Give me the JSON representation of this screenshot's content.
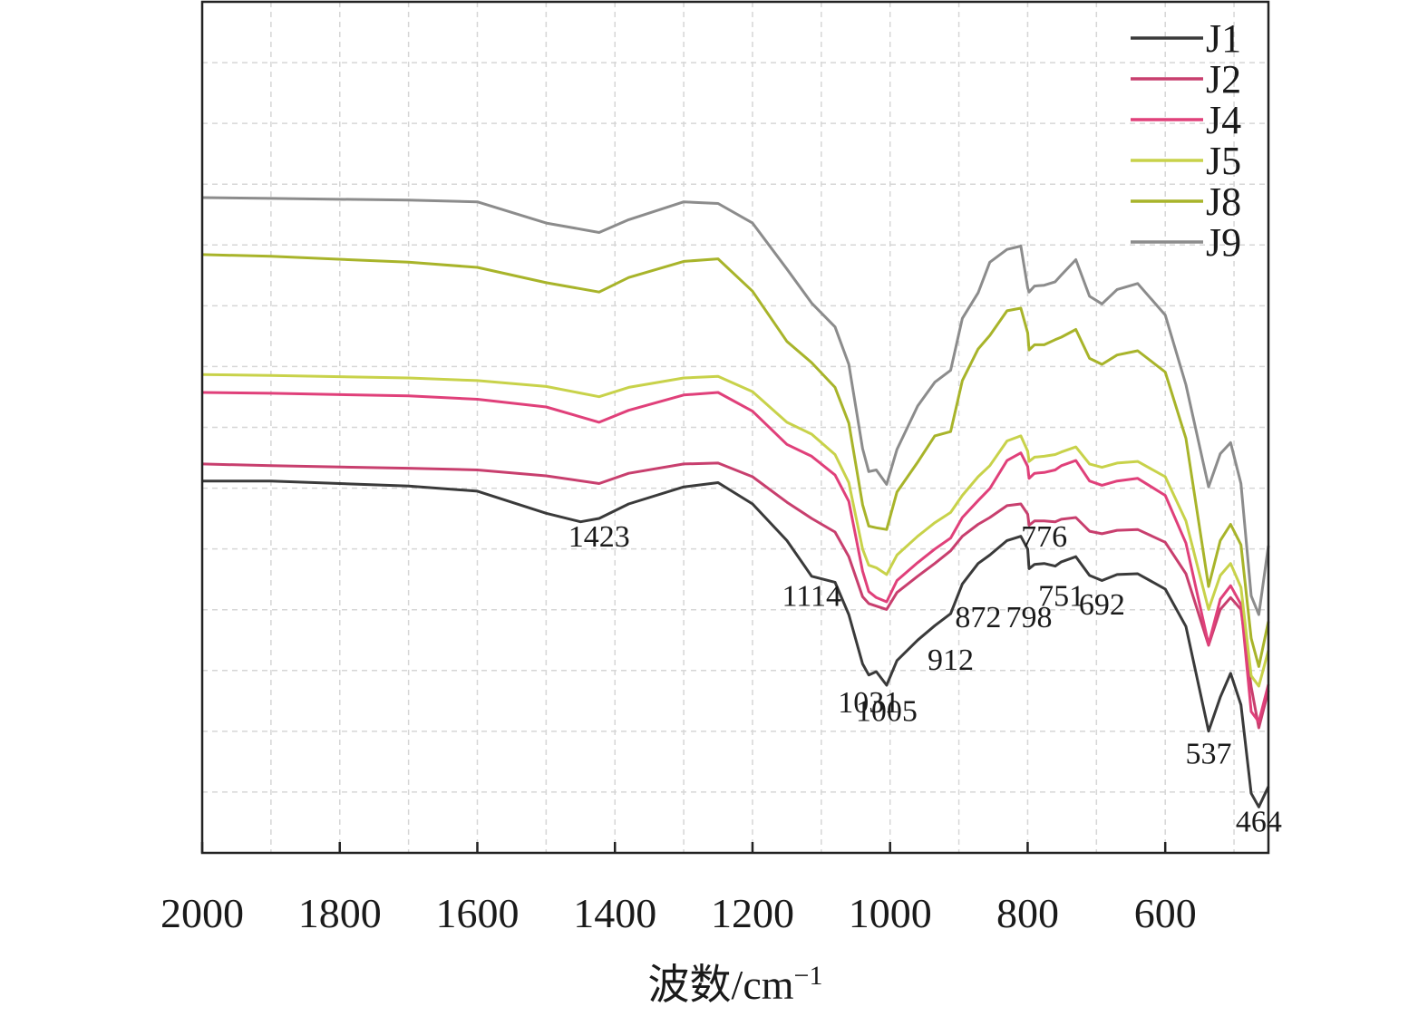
{
  "chart_data": {
    "type": "line",
    "xlabel": "波数/cm",
    "xlabel_sup": "−1",
    "ylabel": "",
    "xlim": [
      2000,
      450
    ],
    "ylim": [
      0,
      1
    ],
    "x_reversed": true,
    "x_ticks": [
      2000,
      1800,
      1600,
      1400,
      1200,
      1000,
      800,
      600
    ],
    "x_tick_labels": [
      "2000",
      "1800",
      "1600",
      "1400",
      "1200",
      "1000",
      "800",
      "600"
    ],
    "grid": true,
    "legend_position": "top-right",
    "series": [
      {
        "name": "J1",
        "color": "#3a3a3a",
        "points": [
          [
            2000,
            0.437
          ],
          [
            1900,
            0.437
          ],
          [
            1700,
            0.431
          ],
          [
            1600,
            0.425
          ],
          [
            1500,
            0.399
          ],
          [
            1450,
            0.389
          ],
          [
            1423,
            0.393
          ],
          [
            1380,
            0.41
          ],
          [
            1300,
            0.43
          ],
          [
            1250,
            0.435
          ],
          [
            1200,
            0.41
          ],
          [
            1150,
            0.367
          ],
          [
            1114,
            0.325
          ],
          [
            1080,
            0.318
          ],
          [
            1060,
            0.28
          ],
          [
            1040,
            0.222
          ],
          [
            1031,
            0.209
          ],
          [
            1020,
            0.213
          ],
          [
            1005,
            0.197
          ],
          [
            990,
            0.226
          ],
          [
            960,
            0.25
          ],
          [
            935,
            0.267
          ],
          [
            912,
            0.281
          ],
          [
            895,
            0.316
          ],
          [
            872,
            0.34
          ],
          [
            855,
            0.35
          ],
          [
            830,
            0.367
          ],
          [
            810,
            0.372
          ],
          [
            800,
            0.357
          ],
          [
            798,
            0.334
          ],
          [
            790,
            0.339
          ],
          [
            776,
            0.34
          ],
          [
            760,
            0.337
          ],
          [
            751,
            0.342
          ],
          [
            730,
            0.348
          ],
          [
            710,
            0.326
          ],
          [
            692,
            0.32
          ],
          [
            670,
            0.327
          ],
          [
            640,
            0.328
          ],
          [
            600,
            0.31
          ],
          [
            570,
            0.266
          ],
          [
            537,
            0.143
          ],
          [
            520,
            0.183
          ],
          [
            505,
            0.211
          ],
          [
            490,
            0.174
          ],
          [
            475,
            0.07
          ],
          [
            464,
            0.054
          ],
          [
            450,
            0.078
          ]
        ]
      },
      {
        "name": "J2",
        "color": "#c83f6e",
        "points": [
          [
            2000,
            0.457
          ],
          [
            1900,
            0.455
          ],
          [
            1700,
            0.452
          ],
          [
            1600,
            0.45
          ],
          [
            1500,
            0.443
          ],
          [
            1423,
            0.434
          ],
          [
            1380,
            0.446
          ],
          [
            1300,
            0.457
          ],
          [
            1250,
            0.458
          ],
          [
            1200,
            0.442
          ],
          [
            1150,
            0.412
          ],
          [
            1114,
            0.393
          ],
          [
            1080,
            0.377
          ],
          [
            1060,
            0.348
          ],
          [
            1040,
            0.301
          ],
          [
            1031,
            0.293
          ],
          [
            1020,
            0.29
          ],
          [
            1005,
            0.286
          ],
          [
            990,
            0.306
          ],
          [
            960,
            0.325
          ],
          [
            935,
            0.34
          ],
          [
            912,
            0.355
          ],
          [
            895,
            0.372
          ],
          [
            872,
            0.386
          ],
          [
            855,
            0.394
          ],
          [
            830,
            0.408
          ],
          [
            810,
            0.41
          ],
          [
            800,
            0.398
          ],
          [
            798,
            0.385
          ],
          [
            790,
            0.39
          ],
          [
            776,
            0.39
          ],
          [
            760,
            0.389
          ],
          [
            751,
            0.392
          ],
          [
            730,
            0.394
          ],
          [
            710,
            0.378
          ],
          [
            692,
            0.375
          ],
          [
            670,
            0.379
          ],
          [
            640,
            0.38
          ],
          [
            600,
            0.365
          ],
          [
            570,
            0.328
          ],
          [
            537,
            0.244
          ],
          [
            520,
            0.286
          ],
          [
            505,
            0.3
          ],
          [
            490,
            0.286
          ],
          [
            475,
            0.195
          ],
          [
            464,
            0.147
          ],
          [
            450,
            0.191
          ]
        ]
      },
      {
        "name": "J4",
        "color": "#e0407a",
        "points": [
          [
            2000,
            0.541
          ],
          [
            1900,
            0.54
          ],
          [
            1700,
            0.537
          ],
          [
            1600,
            0.533
          ],
          [
            1500,
            0.524
          ],
          [
            1423,
            0.506
          ],
          [
            1380,
            0.52
          ],
          [
            1300,
            0.538
          ],
          [
            1250,
            0.541
          ],
          [
            1200,
            0.519
          ],
          [
            1150,
            0.48
          ],
          [
            1114,
            0.466
          ],
          [
            1080,
            0.444
          ],
          [
            1060,
            0.413
          ],
          [
            1040,
            0.331
          ],
          [
            1031,
            0.307
          ],
          [
            1020,
            0.3
          ],
          [
            1005,
            0.295
          ],
          [
            990,
            0.32
          ],
          [
            960,
            0.341
          ],
          [
            935,
            0.357
          ],
          [
            912,
            0.37
          ],
          [
            895,
            0.394
          ],
          [
            872,
            0.414
          ],
          [
            855,
            0.428
          ],
          [
            830,
            0.461
          ],
          [
            810,
            0.47
          ],
          [
            800,
            0.454
          ],
          [
            798,
            0.44
          ],
          [
            790,
            0.446
          ],
          [
            776,
            0.447
          ],
          [
            760,
            0.45
          ],
          [
            751,
            0.455
          ],
          [
            730,
            0.461
          ],
          [
            710,
            0.437
          ],
          [
            692,
            0.432
          ],
          [
            670,
            0.437
          ],
          [
            640,
            0.44
          ],
          [
            600,
            0.42
          ],
          [
            570,
            0.364
          ],
          [
            537,
            0.245
          ],
          [
            520,
            0.298
          ],
          [
            505,
            0.314
          ],
          [
            490,
            0.292
          ],
          [
            475,
            0.166
          ],
          [
            464,
            0.154
          ],
          [
            450,
            0.198
          ]
        ]
      },
      {
        "name": "J5",
        "color": "#c8d24a",
        "points": [
          [
            2000,
            0.562
          ],
          [
            1900,
            0.561
          ],
          [
            1700,
            0.558
          ],
          [
            1600,
            0.555
          ],
          [
            1500,
            0.548
          ],
          [
            1423,
            0.536
          ],
          [
            1380,
            0.547
          ],
          [
            1300,
            0.558
          ],
          [
            1250,
            0.56
          ],
          [
            1200,
            0.542
          ],
          [
            1150,
            0.506
          ],
          [
            1114,
            0.492
          ],
          [
            1080,
            0.468
          ],
          [
            1060,
            0.435
          ],
          [
            1040,
            0.357
          ],
          [
            1031,
            0.338
          ],
          [
            1020,
            0.335
          ],
          [
            1005,
            0.327
          ],
          [
            990,
            0.35
          ],
          [
            960,
            0.372
          ],
          [
            935,
            0.388
          ],
          [
            912,
            0.4
          ],
          [
            895,
            0.42
          ],
          [
            872,
            0.442
          ],
          [
            855,
            0.455
          ],
          [
            830,
            0.484
          ],
          [
            810,
            0.49
          ],
          [
            800,
            0.472
          ],
          [
            798,
            0.46
          ],
          [
            790,
            0.465
          ],
          [
            776,
            0.466
          ],
          [
            760,
            0.468
          ],
          [
            751,
            0.471
          ],
          [
            730,
            0.477
          ],
          [
            710,
            0.457
          ],
          [
            692,
            0.453
          ],
          [
            670,
            0.458
          ],
          [
            640,
            0.46
          ],
          [
            600,
            0.442
          ],
          [
            570,
            0.39
          ],
          [
            537,
            0.286
          ],
          [
            520,
            0.326
          ],
          [
            505,
            0.34
          ],
          [
            490,
            0.312
          ],
          [
            475,
            0.208
          ],
          [
            464,
            0.196
          ],
          [
            450,
            0.238
          ]
        ]
      },
      {
        "name": "J8",
        "color": "#a8b42a",
        "points": [
          [
            2000,
            0.703
          ],
          [
            1900,
            0.701
          ],
          [
            1700,
            0.694
          ],
          [
            1600,
            0.688
          ],
          [
            1500,
            0.67
          ],
          [
            1423,
            0.659
          ],
          [
            1380,
            0.676
          ],
          [
            1300,
            0.695
          ],
          [
            1250,
            0.698
          ],
          [
            1200,
            0.66
          ],
          [
            1150,
            0.601
          ],
          [
            1114,
            0.576
          ],
          [
            1080,
            0.547
          ],
          [
            1060,
            0.505
          ],
          [
            1040,
            0.409
          ],
          [
            1031,
            0.384
          ],
          [
            1020,
            0.382
          ],
          [
            1005,
            0.38
          ],
          [
            990,
            0.424
          ],
          [
            960,
            0.459
          ],
          [
            935,
            0.49
          ],
          [
            912,
            0.495
          ],
          [
            895,
            0.555
          ],
          [
            872,
            0.592
          ],
          [
            855,
            0.608
          ],
          [
            830,
            0.637
          ],
          [
            810,
            0.64
          ],
          [
            800,
            0.611
          ],
          [
            798,
            0.591
          ],
          [
            790,
            0.597
          ],
          [
            776,
            0.597
          ],
          [
            760,
            0.603
          ],
          [
            751,
            0.606
          ],
          [
            730,
            0.615
          ],
          [
            710,
            0.581
          ],
          [
            692,
            0.574
          ],
          [
            670,
            0.585
          ],
          [
            640,
            0.59
          ],
          [
            600,
            0.565
          ],
          [
            570,
            0.487
          ],
          [
            537,
            0.313
          ],
          [
            520,
            0.367
          ],
          [
            505,
            0.386
          ],
          [
            490,
            0.362
          ],
          [
            475,
            0.252
          ],
          [
            464,
            0.219
          ],
          [
            450,
            0.272
          ]
        ]
      },
      {
        "name": "J9",
        "color": "#8c8c8c",
        "points": [
          [
            2000,
            0.77
          ],
          [
            1900,
            0.769
          ],
          [
            1700,
            0.767
          ],
          [
            1600,
            0.765
          ],
          [
            1500,
            0.74
          ],
          [
            1423,
            0.729
          ],
          [
            1380,
            0.744
          ],
          [
            1300,
            0.765
          ],
          [
            1250,
            0.763
          ],
          [
            1200,
            0.74
          ],
          [
            1150,
            0.686
          ],
          [
            1114,
            0.646
          ],
          [
            1080,
            0.618
          ],
          [
            1060,
            0.574
          ],
          [
            1040,
            0.475
          ],
          [
            1031,
            0.448
          ],
          [
            1020,
            0.45
          ],
          [
            1005,
            0.433
          ],
          [
            990,
            0.474
          ],
          [
            960,
            0.525
          ],
          [
            935,
            0.553
          ],
          [
            912,
            0.567
          ],
          [
            895,
            0.628
          ],
          [
            872,
            0.658
          ],
          [
            855,
            0.694
          ],
          [
            830,
            0.709
          ],
          [
            810,
            0.713
          ],
          [
            800,
            0.664
          ],
          [
            798,
            0.659
          ],
          [
            790,
            0.666
          ],
          [
            776,
            0.667
          ],
          [
            760,
            0.671
          ],
          [
            751,
            0.679
          ],
          [
            730,
            0.697
          ],
          [
            710,
            0.654
          ],
          [
            692,
            0.645
          ],
          [
            670,
            0.662
          ],
          [
            640,
            0.669
          ],
          [
            600,
            0.632
          ],
          [
            570,
            0.55
          ],
          [
            537,
            0.43
          ],
          [
            520,
            0.469
          ],
          [
            505,
            0.482
          ],
          [
            490,
            0.434
          ],
          [
            475,
            0.302
          ],
          [
            464,
            0.28
          ],
          [
            450,
            0.361
          ]
        ]
      }
    ],
    "annotations": [
      {
        "text": "1423",
        "x": 1423,
        "y": 0.36
      },
      {
        "text": "1114",
        "x": 1114,
        "y": 0.29
      },
      {
        "text": "1031",
        "x": 1031,
        "y": 0.165
      },
      {
        "text": "1005",
        "x": 1005,
        "y": 0.155
      },
      {
        "text": "912",
        "x": 912,
        "y": 0.215
      },
      {
        "text": "872",
        "x": 872,
        "y": 0.265
      },
      {
        "text": "798",
        "x": 798,
        "y": 0.265
      },
      {
        "text": "776",
        "x": 776,
        "y": 0.36
      },
      {
        "text": "751",
        "x": 751,
        "y": 0.29
      },
      {
        "text": "692",
        "x": 692,
        "y": 0.28
      },
      {
        "text": "537",
        "x": 537,
        "y": 0.105
      },
      {
        "text": "464",
        "x": 464,
        "y": 0.025
      }
    ]
  }
}
